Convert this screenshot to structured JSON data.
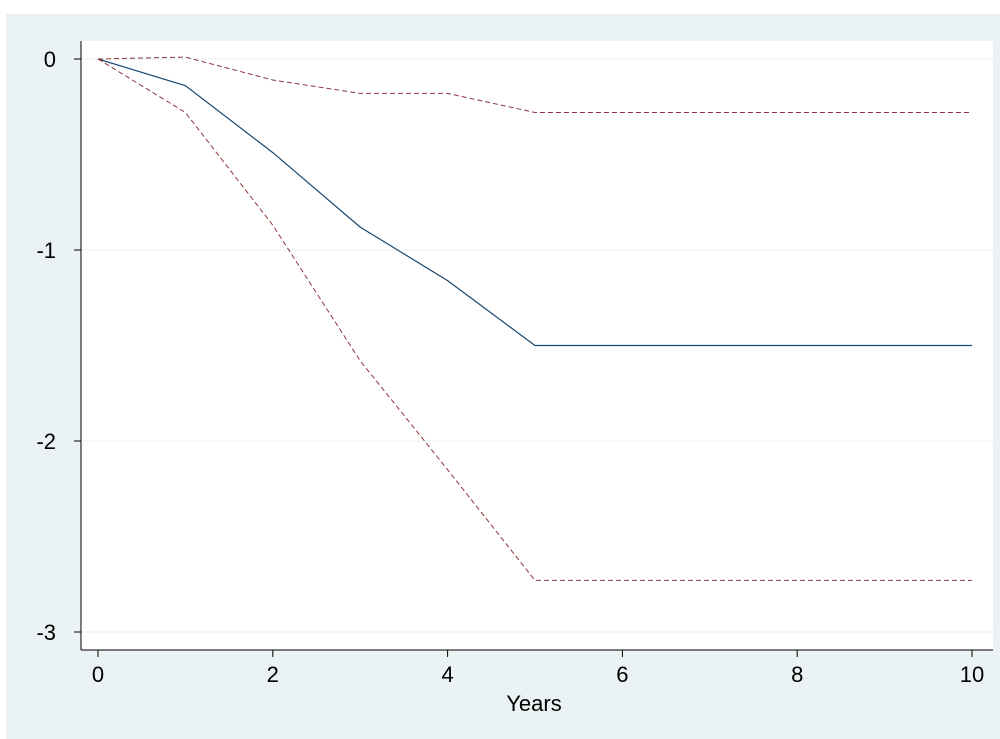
{
  "chart_data": {
    "type": "line",
    "xlabel": "Years",
    "ylabel": "",
    "xlim": [
      0,
      10
    ],
    "ylim": [
      -3,
      0
    ],
    "xticks": [
      0,
      2,
      4,
      6,
      8,
      10
    ],
    "yticks": [
      0,
      -1,
      -2,
      -3
    ],
    "grid": true,
    "colors": {
      "background": "#eaf2f3",
      "plot": "#ffffff",
      "estimate": "#1a476f",
      "bounds": "#90353b"
    },
    "x": [
      0,
      1,
      2,
      3,
      4,
      5,
      6,
      7,
      8,
      9,
      10
    ],
    "series": [
      {
        "role": "estimate",
        "style": "solid",
        "values": [
          0,
          -0.14,
          -0.49,
          -0.88,
          -1.16,
          -1.5,
          -1.5,
          -1.5,
          -1.5,
          -1.5,
          -1.5
        ]
      },
      {
        "role": "upper-bound",
        "style": "dashed",
        "values": [
          0,
          0.01,
          -0.11,
          -0.18,
          -0.18,
          -0.28,
          -0.28,
          -0.28,
          -0.28,
          -0.28,
          -0.28
        ]
      },
      {
        "role": "lower-bound",
        "style": "dashed",
        "values": [
          0,
          -0.28,
          -0.87,
          -1.58,
          -2.15,
          -2.73,
          -2.73,
          -2.73,
          -2.73,
          -2.73,
          -2.73
        ]
      }
    ]
  }
}
